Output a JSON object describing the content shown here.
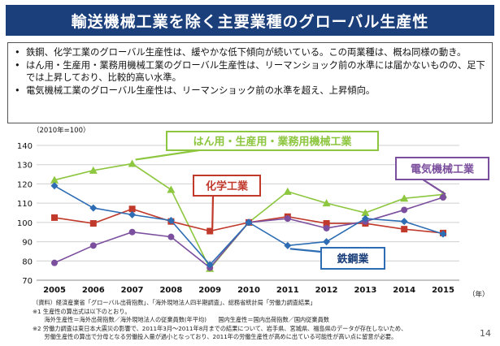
{
  "title": "輸送機械工業を除く主要業種のグローバル生産性",
  "bullets": [
    "鉄鋼、化学工業のグローバル生産性は、緩やかな低下傾向が続いている。この両業種は、概ね同様の動き。",
    "はん用・生産用・業務用機械工業のグローバル生産性は、リーマンショック前の水準には届かないものの、足下では上昇しており、比較的高い水準。",
    "電気機械工業のグローバル生産性は、リーマンショック前の水準を超え、上昇傾向。"
  ],
  "bullet_symbol": "•",
  "chart_data": {
    "type": "line",
    "y_unit_label": "（2010年=100）",
    "x_unit_label": "（年）",
    "x": [
      "2005",
      "2006",
      "2007",
      "2008",
      "2009",
      "2010",
      "2011",
      "2012",
      "2013",
      "2014",
      "2015"
    ],
    "ylim": [
      70,
      140
    ],
    "yticks": [
      70,
      80,
      90,
      100,
      110,
      120,
      130,
      140
    ],
    "grid": "horizontal",
    "series": [
      {
        "name": "はん用・生産用・業務用機械工業",
        "color": "#8dc63f",
        "label_border": "#8dc63f",
        "label_text_color": "#8dc63f",
        "marker": "triangle",
        "values": [
          122,
          127,
          130.5,
          117,
          76,
          100,
          116,
          110,
          105,
          112.5,
          114.5
        ]
      },
      {
        "name": "化学工業",
        "color": "#c0392b",
        "label_border": "#c0392b",
        "label_text_color": "#c0392b",
        "marker": "square",
        "values": [
          102.5,
          99.5,
          107,
          100.5,
          95.5,
          100,
          103,
          99.5,
          99.5,
          96.5,
          94.5
        ]
      },
      {
        "name": "電気機械工業",
        "color": "#7b4f9d",
        "label_border": "#7b4f9d",
        "label_text_color": "#7b4f9d",
        "marker": "circle",
        "values": [
          79,
          88,
          95,
          92.5,
          76.5,
          100,
          102,
          97,
          100.5,
          106.5,
          113
        ]
      },
      {
        "name": "鉄鋼業",
        "color": "#2e6db4",
        "label_border": "#2e6db4",
        "label_text_color": "#1b3f7a",
        "marker": "diamond",
        "values": [
          119,
          107.5,
          104,
          101,
          78,
          100,
          88,
          90,
          102,
          100.5,
          94
        ]
      }
    ]
  },
  "footnotes": [
    "（資料）経済産業省「グローバル出荷指数」、「海外現地法人四半期調査」、総務省統計局「労働力調査結果」",
    "※1 生産性の算出式は以下のとおり。",
    "　　海外生産性＝海外出荷指数／海外現地法人の従業員数(年平均)　　国内生産性＝国内出荷指数／国内従業員数",
    "※2 労働力調査は東日本大震災の影響で、2011年3月〜2011年8月までの結果について、岩手県、宮城県、福島県のデータが存在しないため、",
    "　　労働生産性の算出で分母となる労働投入量が過小となっており、2011年の労働生産性が高めに出ている可能性が高い点に留意が必要。"
  ],
  "page_number": "14"
}
